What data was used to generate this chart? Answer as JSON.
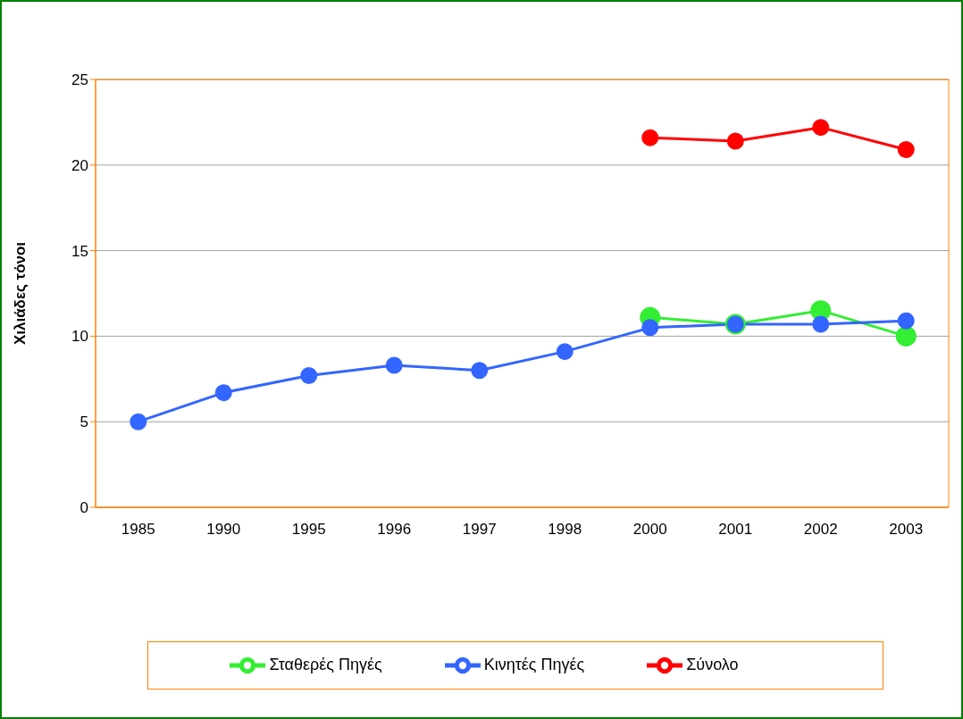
{
  "chart_data": {
    "type": "line",
    "ylabel": "Χιλιάδες τόνοι",
    "categories": [
      "1985",
      "1990",
      "1995",
      "1996",
      "1997",
      "1998",
      "2000",
      "2001",
      "2002",
      "2003"
    ],
    "series": [
      {
        "name": "Σταθερές Πηγές",
        "color": "#33ee33",
        "values": [
          null,
          null,
          null,
          null,
          null,
          null,
          11.1,
          10.7,
          11.5,
          10.0
        ]
      },
      {
        "name": "Κινητές Πηγές",
        "color": "#3366ff",
        "values": [
          5.0,
          6.7,
          7.7,
          8.3,
          8.0,
          9.1,
          10.5,
          10.7,
          10.7,
          10.9
        ]
      },
      {
        "name": "Σύνολο",
        "color": "#ff0000",
        "values": [
          null,
          null,
          null,
          null,
          null,
          null,
          21.6,
          21.4,
          22.2,
          20.9
        ]
      }
    ],
    "ylim": [
      0,
      25
    ],
    "yticks": [
      0,
      5,
      10,
      15,
      20,
      25
    ],
    "grid": "y",
    "legend": "bottom",
    "marker": "circle",
    "line_style": "solid"
  }
}
